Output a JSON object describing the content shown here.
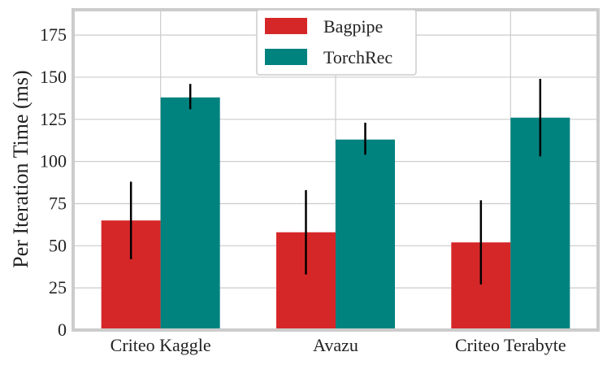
{
  "chart_data": {
    "type": "bar",
    "title": "",
    "xlabel": "",
    "ylabel": "Per Iteration Time (ms)",
    "categories": [
      "Criteo Kaggle",
      "Avazu",
      "Criteo Terabyte"
    ],
    "ylim": [
      0,
      190
    ],
    "yticks": [
      0,
      25,
      50,
      75,
      100,
      125,
      150,
      175
    ],
    "grid": true,
    "legend_position": "top-center",
    "series": [
      {
        "name": "Bagpipe",
        "color": "#d62728",
        "values": [
          65,
          58,
          52
        ],
        "error_low": [
          42,
          33,
          27
        ],
        "error_high": [
          88,
          83,
          77
        ]
      },
      {
        "name": "TorchRec",
        "color": "#00827f",
        "values": [
          138,
          113,
          126
        ],
        "error_low": [
          131,
          104,
          103
        ],
        "error_high": [
          146,
          123,
          149
        ]
      }
    ]
  }
}
